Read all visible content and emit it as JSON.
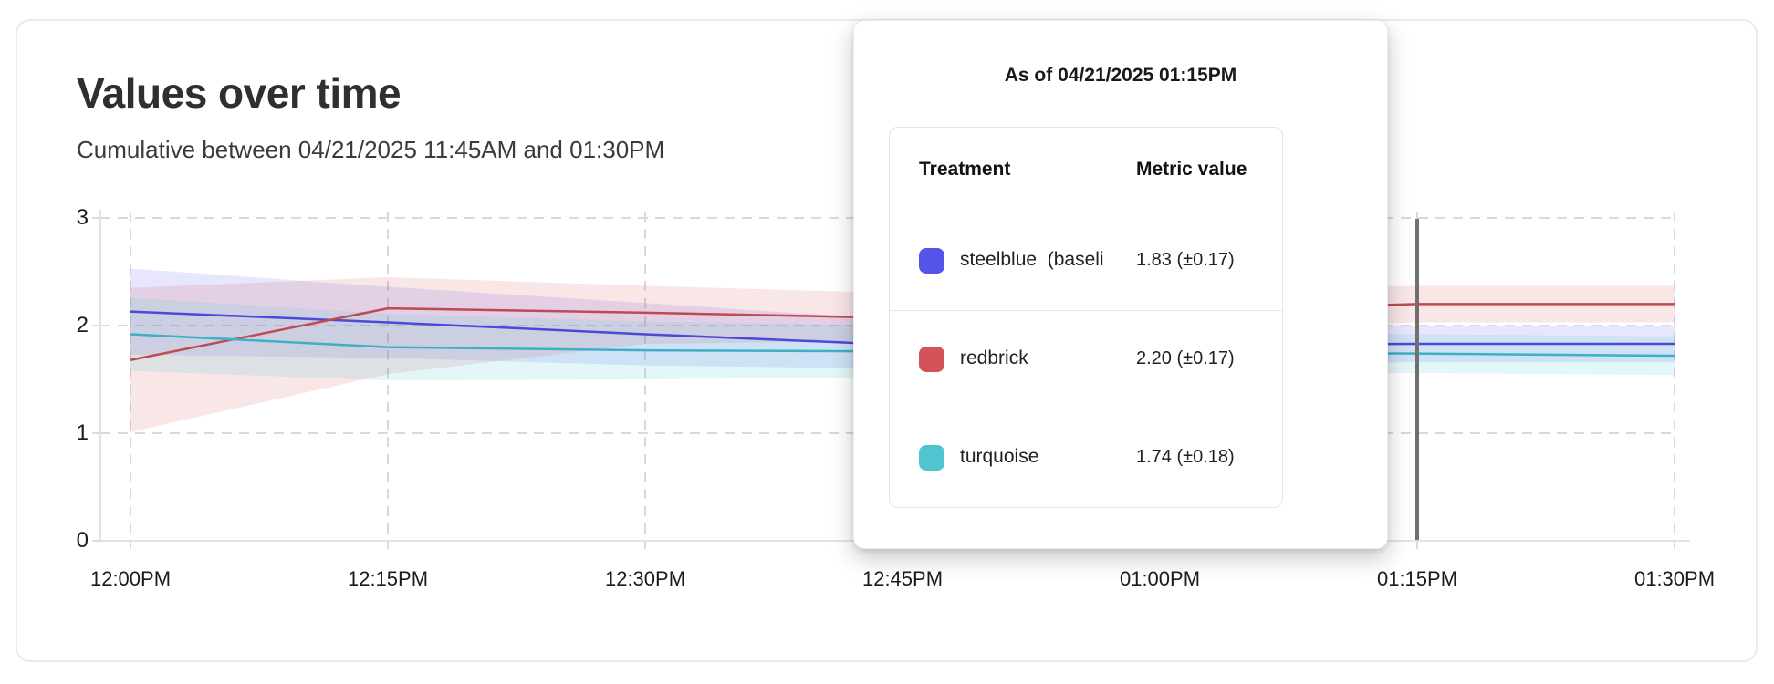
{
  "card": {
    "title": "Values over time",
    "subtitle": "Cumulative between 04/21/2025 11:45AM and 01:30PM"
  },
  "tooltip": {
    "title": "As of 04/21/2025 01:15PM",
    "columns": [
      "Treatment",
      "Metric value"
    ],
    "rows": [
      {
        "label": "steelblue  (baseli",
        "value": "1.83 (±0.17)",
        "swatch": "#5553ea"
      },
      {
        "label": "redbrick",
        "value": "2.20 (±0.17)",
        "swatch": "#d25459"
      },
      {
        "label": "turquoise",
        "value": "1.74 (±0.18)",
        "swatch": "#50c4cf"
      }
    ]
  },
  "chart_data": {
    "type": "line",
    "title": "Values over time",
    "subtitle": "Cumulative between 04/21/2025 11:45AM and 01:30PM",
    "x": [
      "12:00PM",
      "12:15PM",
      "12:30PM",
      "12:45PM",
      "01:00PM",
      "01:15PM",
      "01:30PM"
    ],
    "yticks": [
      0,
      1,
      2,
      3
    ],
    "ylim": [
      0,
      3
    ],
    "grid": "dashed",
    "hover": {
      "index": 5,
      "label": "01:15PM",
      "line_color": "#6f6f6f"
    },
    "series": [
      {
        "name": "steelblue",
        "line_color": "#4b49d8",
        "band_color": "rgba(93,88,232,0.15)",
        "values": [
          2.13,
          2.03,
          1.92,
          1.82,
          1.82,
          1.83,
          1.83
        ],
        "band_lo": [
          1.73,
          1.7,
          1.63,
          1.6,
          1.63,
          1.66,
          1.66
        ],
        "band_hi": [
          2.53,
          2.36,
          2.21,
          2.05,
          2.02,
          2.0,
          2.0
        ]
      },
      {
        "name": "redbrick",
        "line_color": "#c04a51",
        "band_color": "rgba(214,88,97,0.15)",
        "values": [
          1.68,
          2.16,
          2.12,
          2.07,
          2.13,
          2.2,
          2.2
        ],
        "band_lo": [
          1.01,
          1.55,
          1.83,
          1.86,
          1.95,
          2.03,
          2.03
        ],
        "band_hi": [
          2.35,
          2.45,
          2.37,
          2.3,
          2.32,
          2.37,
          2.37
        ]
      },
      {
        "name": "turquoise",
        "line_color": "#3fafc4",
        "band_color": "rgba(82,196,210,0.16)",
        "values": [
          1.92,
          1.8,
          1.77,
          1.76,
          1.75,
          1.74,
          1.72
        ],
        "band_lo": [
          1.58,
          1.49,
          1.5,
          1.52,
          1.54,
          1.56,
          1.54
        ],
        "band_hi": [
          2.26,
          2.11,
          2.04,
          2.0,
          1.96,
          1.92,
          1.9
        ]
      }
    ]
  }
}
